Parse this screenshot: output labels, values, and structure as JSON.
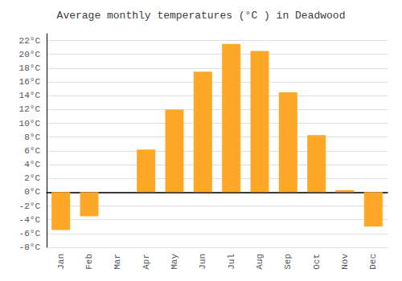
{
  "chart_data": {
    "type": "bar",
    "title": "Average monthly temperatures (°C ) in Deadwood",
    "categories": [
      "Jan",
      "Feb",
      "Mar",
      "Apr",
      "May",
      "Jun",
      "Jul",
      "Aug",
      "Sep",
      "Oct",
      "Nov",
      "Dec"
    ],
    "values": [
      -5.5,
      -3.5,
      0.0,
      6.2,
      12.0,
      17.5,
      21.5,
      20.5,
      14.5,
      8.3,
      0.3,
      -5.0
    ],
    "color": "#FFA726",
    "ylim": [
      -8,
      23
    ],
    "yticks": [
      {
        "value": -8,
        "label": "-8°C"
      },
      {
        "value": -6,
        "label": "-6°C"
      },
      {
        "value": -4,
        "label": "-4°C"
      },
      {
        "value": -2,
        "label": "-2°C"
      },
      {
        "value": 0,
        "label": "0°C"
      },
      {
        "value": 2,
        "label": "2°C"
      },
      {
        "value": 4,
        "label": "4°C"
      },
      {
        "value": 6,
        "label": "6°C"
      },
      {
        "value": 8,
        "label": "8°C"
      },
      {
        "value": 10,
        "label": "10°C"
      },
      {
        "value": 12,
        "label": "12°C"
      },
      {
        "value": 14,
        "label": "14°C"
      },
      {
        "value": 16,
        "label": "16°C"
      },
      {
        "value": 18,
        "label": "18°C"
      },
      {
        "value": 20,
        "label": "20°C"
      },
      {
        "value": 22,
        "label": "22°C"
      }
    ],
    "grid": true
  }
}
